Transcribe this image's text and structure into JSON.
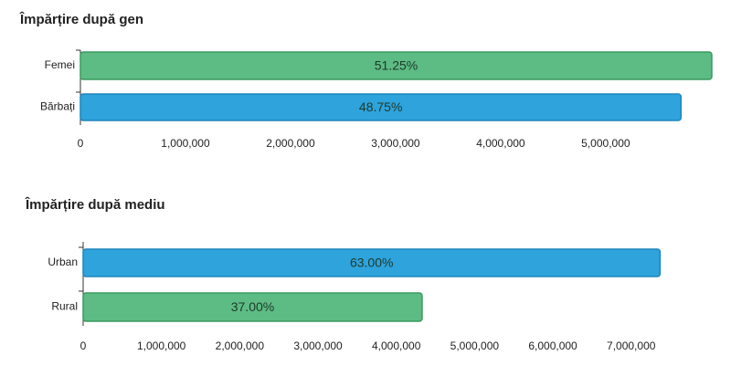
{
  "chart_data": [
    {
      "type": "bar",
      "orientation": "horizontal",
      "title": "Împărțire după gen",
      "categories": [
        "Femei",
        "Bărbați"
      ],
      "values": [
        6010000,
        5717000
      ],
      "percentage_labels": [
        "51.25%",
        "48.75%"
      ],
      "colors": [
        "#5dbb84",
        "#2ea3dc"
      ],
      "xlim": [
        0,
        6010000
      ],
      "xticks": [
        0,
        {
          "value": 1000000,
          "label": "1,000,000"
        },
        {
          "value": 2000000,
          "label": "2,000,000"
        },
        {
          "value": 3000000,
          "label": "3,000,000"
        },
        {
          "value": 4000000,
          "label": "4,000,000"
        },
        {
          "value": 5000000,
          "label": "5,000,000"
        }
      ]
    },
    {
      "type": "bar",
      "orientation": "horizontal",
      "title": "Împărțire după mediu",
      "categories": [
        "Urban",
        "Rural"
      ],
      "values": [
        7370000,
        4330000
      ],
      "percentage_labels": [
        "63.00%",
        "37.00%"
      ],
      "colors": [
        "#2ea3dc",
        "#5dbb84"
      ],
      "xlim": [
        0,
        7400000
      ],
      "xticks": [
        0,
        {
          "value": 1000000,
          "label": "1,000,000"
        },
        {
          "value": 2000000,
          "label": "2,000,000"
        },
        {
          "value": 3000000,
          "label": "3,000,000"
        },
        {
          "value": 4000000,
          "label": "4,000,000"
        },
        {
          "value": 5000000,
          "label": "5,000,000"
        },
        {
          "value": 6000000,
          "label": "6,000,000"
        },
        {
          "value": 7000000,
          "label": "7,000,000"
        }
      ]
    }
  ]
}
